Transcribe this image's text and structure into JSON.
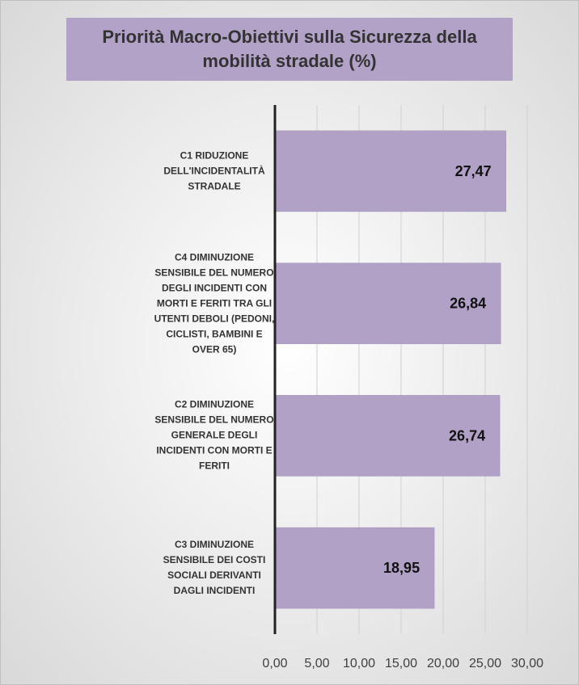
{
  "chart_data": {
    "type": "bar",
    "orientation": "horizontal",
    "title": "Priorità Macro-Obiettivi sulla Sicurezza della mobilità stradale (%)",
    "categories": [
      "C1 RIDUZIONE DELL'INCIDENTALITÀ STRADALE",
      "C4 DIMINUZIONE SENSIBILE DEL NUMERO DEGLI INCIDENTI CON MORTI E FERITI TRA GLI UTENTI DEBOLI (PEDONI, CICLISTI, BAMBINI E OVER 65)",
      "C2 DIMINUZIONE SENSIBILE DEL NUMERO GENERALE DEGLI INCIDENTI CON MORTI E FERITI",
      "C3 DIMINUZIONE SENSIBILE DEI COSTI SOCIALI DERIVANTI DAGLI INCIDENTI"
    ],
    "values": [
      27.47,
      26.84,
      26.74,
      18.95
    ],
    "value_labels": [
      "27,47",
      "26,84",
      "26,74",
      "18,95"
    ],
    "color": "#b2a1c7",
    "xlim": [
      0,
      30
    ],
    "xticks": [
      {
        "value": 0,
        "label": "0,00"
      },
      {
        "value": 5,
        "label": "5,00"
      },
      {
        "value": 10,
        "label": "10,00"
      },
      {
        "value": 15,
        "label": "15,00"
      },
      {
        "value": 20,
        "label": "20,00"
      },
      {
        "value": 25,
        "label": "25,00"
      },
      {
        "value": 30,
        "label": "30,00"
      }
    ],
    "grid": true
  }
}
